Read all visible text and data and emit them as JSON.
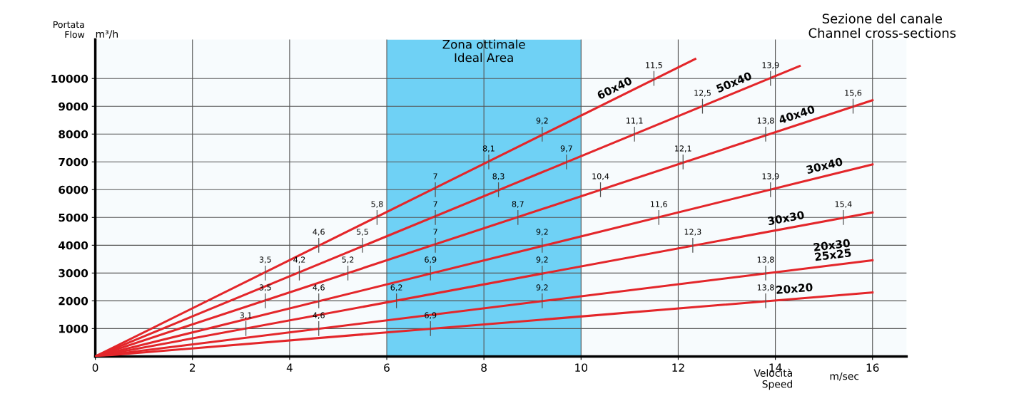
{
  "chart_data": {
    "type": "line",
    "xlabel": "Velocità\nSpeed",
    "ylabel": "Portata\nFlow",
    "annotations": [
      "m³/h",
      "m/sec",
      "Sezione del canale\nChannel cross-sections",
      {
        "text": "3,5",
        "x": 3.5,
        "y": 3000
      },
      {
        "text": "4,6",
        "x": 4.6,
        "y": 4000
      },
      {
        "text": "5,8",
        "x": 5.8,
        "y": 5000
      },
      {
        "text": "7",
        "x": 7,
        "y": 6000
      },
      {
        "text": "8,1",
        "x": 8.1,
        "y": 7000
      },
      {
        "text": "9,2",
        "x": 9.2,
        "y": 8000
      },
      {
        "text": "11,5",
        "x": 11.5,
        "y": 10000
      },
      {
        "text": "4,2",
        "x": 4.2,
        "y": 3000
      },
      {
        "text": "5,5",
        "x": 5.5,
        "y": 4000
      },
      {
        "text": "7",
        "x": 7,
        "y": 5000
      },
      {
        "text": "8,3",
        "x": 8.3,
        "y": 6000
      },
      {
        "text": "9,7",
        "x": 9.7,
        "y": 7000
      },
      {
        "text": "11,1",
        "x": 11.1,
        "y": 8000
      },
      {
        "text": "12,5",
        "x": 12.5,
        "y": 9000
      },
      {
        "text": "13,9",
        "x": 13.9,
        "y": 10000
      },
      {
        "text": "3,5",
        "x": 3.5,
        "y": 2000
      },
      {
        "text": "5,2",
        "x": 5.2,
        "y": 3000
      },
      {
        "text": "7",
        "x": 7,
        "y": 4000
      },
      {
        "text": "8,7",
        "x": 8.7,
        "y": 5000
      },
      {
        "text": "10,4",
        "x": 10.4,
        "y": 6000
      },
      {
        "text": "12,1",
        "x": 12.1,
        "y": 7000
      },
      {
        "text": "13,8",
        "x": 13.8,
        "y": 8000
      },
      {
        "text": "15,6",
        "x": 15.6,
        "y": 9000
      },
      {
        "text": "4,6",
        "x": 4.6,
        "y": 2000
      },
      {
        "text": "6,9",
        "x": 6.9,
        "y": 3000
      },
      {
        "text": "9,2",
        "x": 9.2,
        "y": 4000
      },
      {
        "text": "11,6",
        "x": 11.6,
        "y": 5000
      },
      {
        "text": "13,9",
        "x": 13.9,
        "y": 6000
      },
      {
        "text": "3,1",
        "x": 3.1,
        "y": 1000
      },
      {
        "text": "6,2",
        "x": 6.2,
        "y": 2000
      },
      {
        "text": "9,2",
        "x": 9.2,
        "y": 3000
      },
      {
        "text": "12,3",
        "x": 12.3,
        "y": 4000
      },
      {
        "text": "15,4",
        "x": 15.4,
        "y": 5000
      },
      {
        "text": "4,6",
        "x": 4.6,
        "y": 1000
      },
      {
        "text": "9,2",
        "x": 9.2,
        "y": 2000
      },
      {
        "text": "13,8",
        "x": 13.8,
        "y": 3000
      },
      {
        "text": "6,9",
        "x": 6.9,
        "y": 1000
      },
      {
        "text": "13,8",
        "x": 13.8,
        "y": 2000
      }
    ],
    "xlim": [
      0,
      16.7
    ],
    "ylim": [
      0,
      11400
    ],
    "xticks": [
      0,
      2,
      4,
      6,
      8,
      10,
      12,
      14,
      16
    ],
    "yticks": [
      {
        "value": 1000,
        "label": "1000"
      },
      {
        "value": 2000,
        "label": "2000"
      },
      {
        "value": 3000,
        "label": "3000"
      },
      {
        "value": 4000,
        "label": "4000"
      },
      {
        "value": 5000,
        "label": "5000"
      },
      {
        "value": 6000,
        "label": "6000"
      },
      {
        "value": 7000,
        "label": "7000"
      },
      {
        "value": 8000,
        "label": "8000"
      },
      {
        "value": 9000,
        "label": "9000"
      },
      {
        "value": 10000,
        "label": "10000"
      }
    ],
    "grid": true,
    "legend": false,
    "marker": "none",
    "line_style": "solid",
    "bands": [
      {
        "axis": "x",
        "from": 6,
        "to": 10,
        "label": "Zona ottimale\nIdeal Area",
        "color": "#00aeef"
      }
    ],
    "series": [
      {
        "name": "60x40",
        "color": "#e3262a",
        "x": [
          0,
          12.35
        ],
        "values": [
          0,
          10700
        ]
      },
      {
        "name": "50x40",
        "color": "#e3262a",
        "x": [
          0,
          14.5
        ],
        "values": [
          0,
          10450
        ]
      },
      {
        "name": "40x40",
        "color": "#e3262a",
        "x": [
          0,
          16
        ],
        "values": [
          0,
          9220
        ]
      },
      {
        "name": "30x40",
        "color": "#e3262a",
        "x": [
          0,
          16
        ],
        "values": [
          0,
          6910
        ]
      },
      {
        "name": "30x30",
        "color": "#e3262a",
        "x": [
          0,
          16
        ],
        "values": [
          0,
          5180
        ]
      },
      {
        "name": "20x30\n25x25",
        "color": "#e3262a",
        "x": [
          0,
          16
        ],
        "values": [
          0,
          3460
        ]
      },
      {
        "name": "20x20",
        "color": "#e3262a",
        "x": [
          0,
          16
        ],
        "values": [
          0,
          2300
        ]
      }
    ]
  }
}
